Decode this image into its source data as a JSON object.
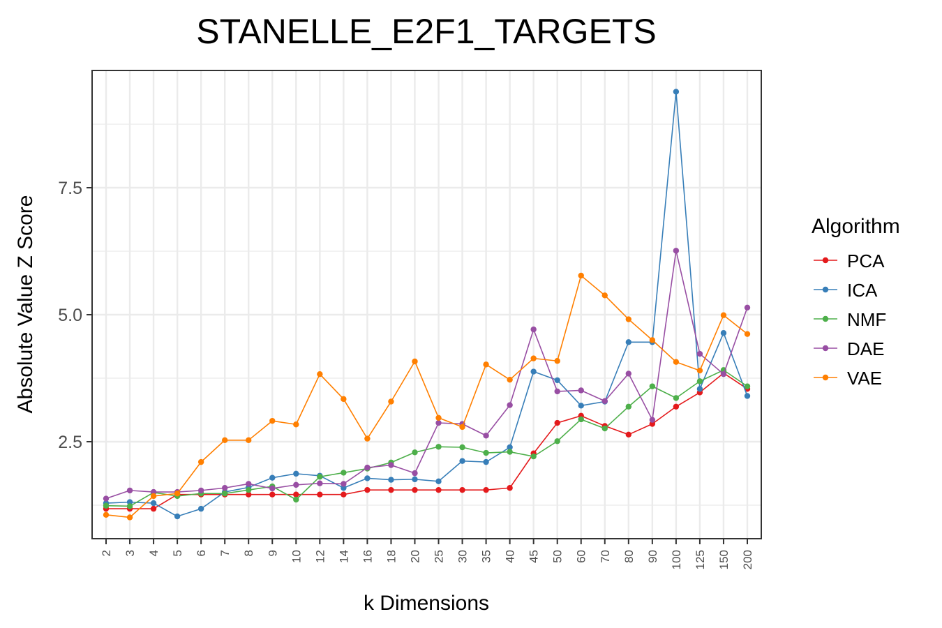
{
  "chart_data": {
    "type": "line",
    "title": "STANELLE_E2F1_TARGETS",
    "xlabel": "k Dimensions",
    "ylabel": "Absolute Value Z Score",
    "categories": [
      "2",
      "3",
      "4",
      "5",
      "6",
      "7",
      "8",
      "9",
      "10",
      "12",
      "14",
      "16",
      "18",
      "20",
      "25",
      "30",
      "35",
      "40",
      "45",
      "50",
      "60",
      "70",
      "80",
      "90",
      "100",
      "125",
      "150",
      "200"
    ],
    "y_ticks": [
      "2.5",
      "5.0",
      "7.5"
    ],
    "ylim": [
      0.7,
      9.8
    ],
    "grid": true,
    "legend_title": "Algorithm",
    "legend_position": "right",
    "series": [
      {
        "name": "PCA",
        "color": "#e41a1c",
        "values": [
          1.18,
          1.18,
          1.18,
          1.46,
          1.46,
          1.46,
          1.46,
          1.46,
          1.46,
          1.46,
          1.46,
          1.55,
          1.55,
          1.55,
          1.55,
          1.55,
          1.55,
          1.59,
          2.27,
          2.87,
          3.01,
          2.81,
          2.64,
          2.85,
          3.19,
          3.47,
          3.85,
          3.54
        ]
      },
      {
        "name": "ICA",
        "color": "#377eb8",
        "values": [
          1.29,
          1.31,
          1.29,
          1.03,
          1.18,
          1.51,
          1.6,
          1.79,
          1.87,
          1.83,
          1.59,
          1.78,
          1.75,
          1.76,
          1.72,
          2.12,
          2.1,
          2.39,
          3.88,
          3.71,
          3.21,
          3.29,
          4.46,
          4.46,
          9.39,
          3.54,
          4.64,
          3.4
        ]
      },
      {
        "name": "NMF",
        "color": "#4daf4a",
        "values": [
          1.24,
          1.23,
          1.5,
          1.43,
          1.48,
          1.48,
          1.55,
          1.62,
          1.36,
          1.81,
          1.89,
          1.97,
          2.09,
          2.29,
          2.4,
          2.39,
          2.28,
          2.3,
          2.21,
          2.51,
          2.94,
          2.76,
          3.19,
          3.59,
          3.36,
          3.69,
          3.91,
          3.59
        ]
      },
      {
        "name": "DAE",
        "color": "#984ea3",
        "values": [
          1.38,
          1.54,
          1.51,
          1.51,
          1.54,
          1.59,
          1.67,
          1.58,
          1.65,
          1.68,
          1.67,
          1.99,
          2.04,
          1.88,
          2.87,
          2.85,
          2.62,
          3.22,
          4.71,
          3.49,
          3.51,
          3.3,
          3.84,
          2.93,
          6.26,
          4.23,
          3.83,
          5.14
        ]
      },
      {
        "name": "VAE",
        "color": "#ff7f00",
        "values": [
          1.06,
          1.01,
          1.43,
          1.48,
          2.1,
          2.53,
          2.53,
          2.91,
          2.84,
          3.83,
          3.34,
          2.56,
          3.29,
          4.08,
          2.97,
          2.79,
          4.02,
          3.72,
          4.14,
          4.09,
          5.77,
          5.38,
          4.91,
          4.5,
          4.07,
          3.9,
          4.99,
          4.62
        ]
      }
    ]
  }
}
